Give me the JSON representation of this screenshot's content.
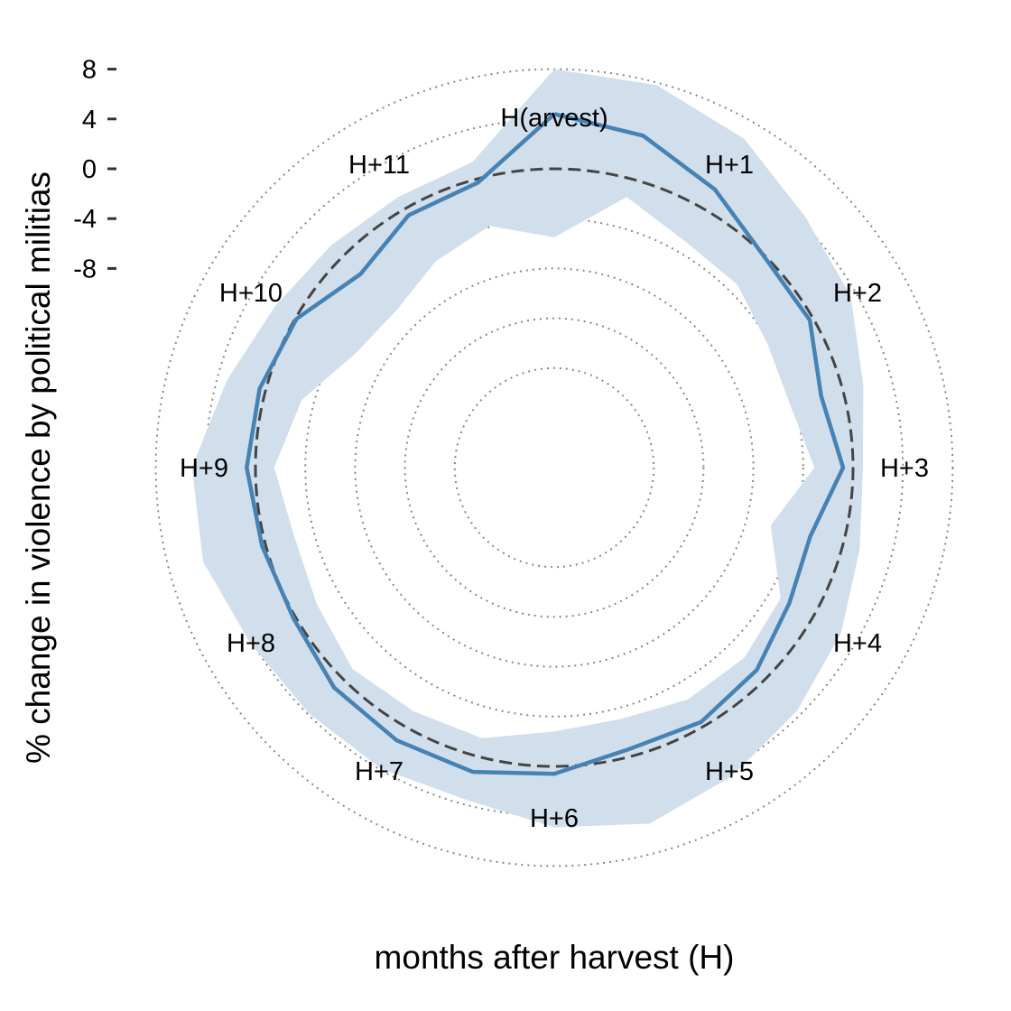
{
  "chart_data": {
    "type": "radar",
    "xlabel": "months after harvest (H)",
    "ylabel": "% change in violence by political militias",
    "categories": [
      "H(arvest)",
      "H+1",
      "H+2",
      "H+3",
      "H+4",
      "H+5",
      "H+6",
      "H+7",
      "H+8",
      "H+9",
      "H+10",
      "H+11"
    ],
    "radial_ticks": [
      -8,
      -4,
      0,
      4,
      8
    ],
    "radial_tick_labels": [
      "-8",
      "-4",
      "0",
      "4",
      "8"
    ],
    "rlim": [
      -20,
      12
    ],
    "grid_circles": [
      -16,
      -12,
      -8,
      -4,
      4,
      8
    ],
    "zero_reference": 0,
    "estimate": [
      4.4,
      3.6,
      1.8,
      -0.1,
      -0.3,
      -1.8,
      -0.8,
      -2.7,
      -2.2,
      -1.0,
      -0.4,
      -0.6,
      0.6,
      1.3,
      1.3,
      1.0,
      0.2,
      0.3,
      0.7,
      0.5,
      -0.1,
      -2.0,
      -0.6,
      -0.3,
      4.4
    ],
    "ci_upper": [
      8.0,
      7.8,
      6.5,
      4.5,
      3.5,
      1.7,
      0.8,
      1.4,
      2.6,
      3.6,
      4.6,
      5.6,
      4.9,
      3.6,
      3.9,
      3.9,
      4.2,
      5.2,
      5.1,
      3.2,
      1.9,
      1.3,
      1.1,
      1.4,
      8.0
    ],
    "ci_lower": [
      -5.5,
      -1.5,
      -3.0,
      -3.2,
      -4.2,
      -4.4,
      -3.1,
      -6.0,
      -3.0,
      -2.4,
      -2.5,
      -3.1,
      -2.8,
      -1.5,
      -1.4,
      -1.1,
      -2.0,
      -2.4,
      -1.5,
      -3.0,
      -5.6,
      -6.1,
      -4.9,
      -3.9,
      -5.5
    ],
    "colors": {
      "line": "#4682b4",
      "band": "#d1dfec",
      "zero_line": "#444444",
      "grid": "#888888"
    }
  }
}
